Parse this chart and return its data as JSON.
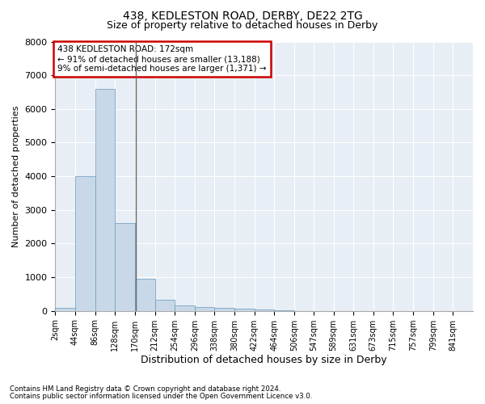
{
  "title1": "438, KEDLESTON ROAD, DERBY, DE22 2TG",
  "title2": "Size of property relative to detached houses in Derby",
  "xlabel": "Distribution of detached houses by size in Derby",
  "ylabel": "Number of detached properties",
  "bar_edges": [
    2,
    44,
    86,
    128,
    170,
    212,
    254,
    296,
    338,
    380,
    422,
    464,
    506,
    547,
    589,
    631,
    673,
    715,
    757,
    799,
    841
  ],
  "bar_heights": [
    80,
    4000,
    6600,
    2600,
    950,
    330,
    150,
    120,
    80,
    60,
    50,
    10,
    5,
    3,
    2,
    1,
    1,
    1,
    1,
    1
  ],
  "bar_color": "#c8d8e8",
  "bar_edgecolor": "#6699bb",
  "vline_x": 172,
  "vline_color": "#666666",
  "ylim": [
    0,
    8000
  ],
  "yticks": [
    0,
    1000,
    2000,
    3000,
    4000,
    5000,
    6000,
    7000,
    8000
  ],
  "annotation_text": "438 KEDLESTON ROAD: 172sqm\n← 91% of detached houses are smaller (13,188)\n9% of semi-detached houses are larger (1,371) →",
  "annotation_box_color": "#cc0000",
  "bg_color": "#e8eef5",
  "footnote1": "Contains HM Land Registry data © Crown copyright and database right 2024.",
  "footnote2": "Contains public sector information licensed under the Open Government Licence v3.0.",
  "tick_labels": [
    "2sqm",
    "44sqm",
    "86sqm",
    "128sqm",
    "170sqm",
    "212sqm",
    "254sqm",
    "296sqm",
    "338sqm",
    "380sqm",
    "422sqm",
    "464sqm",
    "506sqm",
    "547sqm",
    "589sqm",
    "631sqm",
    "673sqm",
    "715sqm",
    "757sqm",
    "799sqm",
    "841sqm"
  ],
  "title1_fontsize": 10,
  "title2_fontsize": 9,
  "ylabel_fontsize": 8,
  "xlabel_fontsize": 9
}
